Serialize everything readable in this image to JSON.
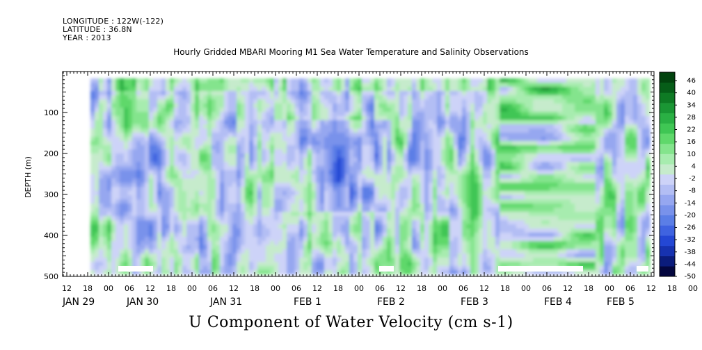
{
  "header": {
    "longitude": "LONGITUDE : 122W(-122)",
    "latitude": "LATITUDE : 36.8N",
    "year": "YEAR : 2013"
  },
  "title": "Hourly Gridded MBARI Mooring M1 Sea Water Temperature and Salinity Observations",
  "footer": "U Component of Water Velocity (cm s-1)",
  "chart_data": {
    "type": "heatmap",
    "title": "Hourly Gridded MBARI Mooring M1 Sea Water Temperature and Salinity Observations",
    "xlabel": "",
    "ylabel": "DEPTH (m)",
    "ylim": [
      500,
      0
    ],
    "y_ticks": [
      100,
      200,
      300,
      400,
      500
    ],
    "hour_tick_labels": [
      "12",
      "18",
      "00",
      "06",
      "12",
      "18",
      "00",
      "06",
      "12",
      "18",
      "00",
      "06",
      "12",
      "18",
      "00",
      "06",
      "12",
      "18",
      "00",
      "06",
      "12",
      "18",
      "00",
      "06",
      "12",
      "18",
      "00",
      "06",
      "12",
      "18",
      "00",
      "06"
    ],
    "day_labels": [
      "JAN 29",
      "JAN 30",
      "JAN 31",
      "FEB  1",
      "FEB  2",
      "FEB  3",
      "FEB  4",
      "FEB  5"
    ],
    "colorbar_labels": [
      "46",
      "40",
      "34",
      "28",
      "22",
      "16",
      "10",
      "4",
      "-2",
      "-8",
      "-14",
      "-20",
      "-26",
      "-32",
      "-38",
      "-44",
      "-50"
    ],
    "colorbar_range": [
      -50,
      46
    ],
    "colormap": [
      "#04073f",
      "#0b1c7c",
      "#1732b0",
      "#2447d4",
      "#3f63e0",
      "#5b7ee6",
      "#7992eb",
      "#96a7f0",
      "#b3bef4",
      "#cdd3f8",
      "#c6ebcc",
      "#a7ecaf",
      "#84e48d",
      "#5fd86b",
      "#3fc654",
      "#2ab044",
      "#1a9634",
      "#0e7a24",
      "#065d18",
      "#02430e"
    ],
    "grid": false
  }
}
